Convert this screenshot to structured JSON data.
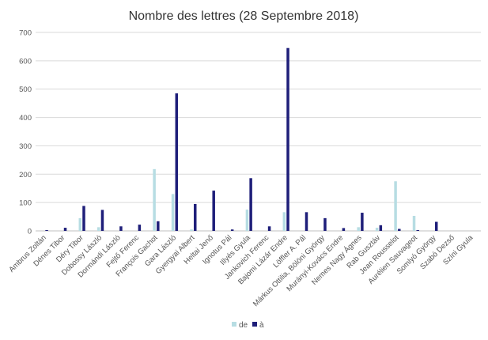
{
  "chart_data": {
    "type": "bar",
    "title": "Nombre des lettres (28 Septembre 2018)",
    "xlabel": "",
    "ylabel": "",
    "ylim": [
      0,
      700
    ],
    "yticks": [
      0,
      100,
      200,
      300,
      400,
      500,
      600,
      700
    ],
    "grid": true,
    "legend_position": "bottom",
    "categories": [
      "Ambrus Zoltán",
      "Dénes Tibor",
      "Déry Tibor",
      "Dobossy László",
      "Dormándi László",
      "Fejtő Ferenc",
      "François Gachot",
      "Gara László",
      "Gyergyai Albert",
      "Heltai Jenő",
      "Ignotus Pál",
      "Illyés Gyula",
      "Jankovich Ferenc",
      "Bajomi Lázár Endre",
      "Löffler A. Pál",
      "Márkus Ottilia, Bölöni György",
      "Murányi-Kovács Endre",
      "Nemes Nagy Ágnes",
      "Rab Gusztáv",
      "Jean Rousselot",
      "Aurélien Sauvageot",
      "Somlyó György",
      "Szabó Dezső",
      "Színi Gyula"
    ],
    "series": [
      {
        "name": "de",
        "color": "#b7dde3",
        "values": [
          0,
          0,
          45,
          13,
          0,
          0,
          218,
          130,
          5,
          0,
          0,
          75,
          0,
          66,
          0,
          0,
          0,
          13,
          11,
          175,
          53,
          0,
          0,
          0
        ]
      },
      {
        "name": "à",
        "color": "#1f1f7a",
        "values": [
          3,
          11,
          88,
          74,
          16,
          22,
          34,
          485,
          95,
          142,
          5,
          186,
          16,
          645,
          66,
          45,
          10,
          64,
          20,
          7,
          3,
          32,
          0,
          0
        ]
      }
    ]
  }
}
